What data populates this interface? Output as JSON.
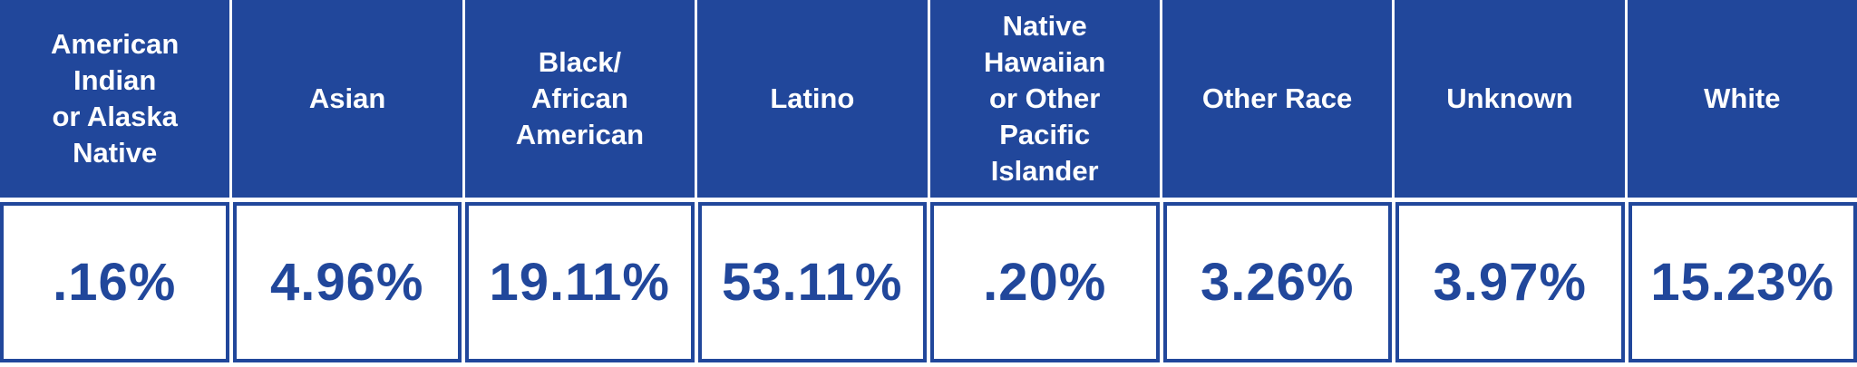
{
  "colors": {
    "primary_blue": "#21479B",
    "header_text": "#FFFFFF",
    "cell_background": "#FFFFFF"
  },
  "table": {
    "columns": [
      {
        "header": "American Indian or Alaska Native",
        "header_lines": [
          "American",
          "Indian",
          "or Alaska",
          "Native"
        ],
        "value": ".16%"
      },
      {
        "header": "Asian",
        "header_lines": [
          "Asian"
        ],
        "value": "4.96%"
      },
      {
        "header": "Black/ African American",
        "header_lines": [
          "Black/",
          "African",
          "American"
        ],
        "value": "19.11%"
      },
      {
        "header": "Latino",
        "header_lines": [
          "Latino"
        ],
        "value": "53.11%"
      },
      {
        "header": "Native Hawaiian or Other Pacific Islander",
        "header_lines": [
          "Native",
          "Hawaiian",
          "or Other",
          "Pacific",
          "Islander"
        ],
        "value": ".20%"
      },
      {
        "header": "Other Race",
        "header_lines": [
          "Other Race"
        ],
        "value": "3.26%"
      },
      {
        "header": "Unknown",
        "header_lines": [
          "Unknown"
        ],
        "value": "3.97%"
      },
      {
        "header": "White",
        "header_lines": [
          "White"
        ],
        "value": "15.23%"
      }
    ]
  },
  "chart_data": {
    "type": "table",
    "title": "",
    "categories": [
      "American Indian or Alaska Native",
      "Asian",
      "Black/African American",
      "Latino",
      "Native Hawaiian or Other Pacific Islander",
      "Other Race",
      "Unknown",
      "White"
    ],
    "values": [
      0.16,
      4.96,
      19.11,
      53.11,
      0.2,
      3.26,
      3.97,
      15.23
    ],
    "value_labels": [
      ".16%",
      "4.96%",
      "19.11%",
      "53.11%",
      ".20%",
      "3.26%",
      "3.97%",
      "15.23%"
    ],
    "unit": "percent",
    "layout": "single header row over single value row, 8 equal columns"
  }
}
